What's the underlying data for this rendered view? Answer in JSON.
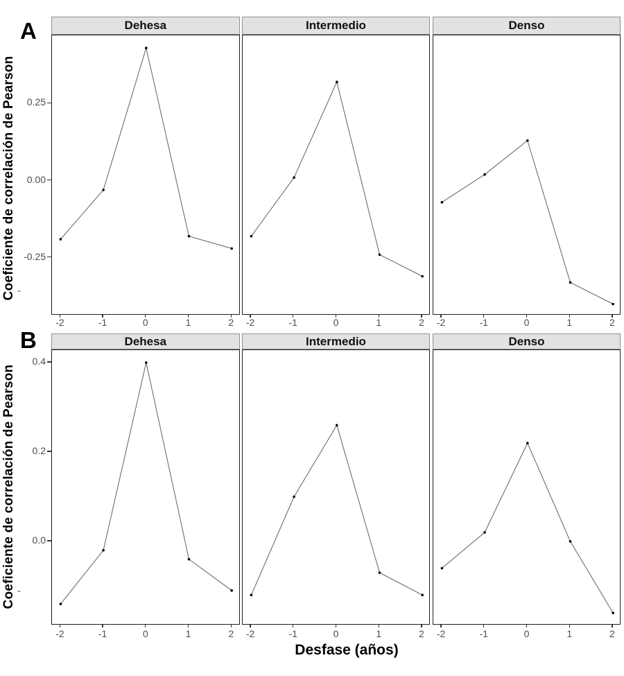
{
  "figure": {
    "row_labels": [
      "A",
      "B"
    ],
    "x_axis_title": "Desfase (años)",
    "y_axis_title": "Coeficiente de correlación de Pearson",
    "facet_titles": [
      "Dehesa",
      "Intermedio",
      "Denso"
    ],
    "stray_marks": [
      "-",
      "-"
    ],
    "colors": {
      "strip_fill": "#e2e2e2",
      "strip_border": "#8f8f8f",
      "panel_border": "#1f1f1f",
      "panel_bg": "#ffffff",
      "line": "#5f5f5f",
      "point": "#000000",
      "tick_label": "#4d4d4d",
      "axis_title": "#000000"
    }
  },
  "chart_data": [
    {
      "type": "line",
      "row_label": "A",
      "x": [
        -2,
        -1,
        0,
        1,
        2
      ],
      "xtick_labels": [
        "-2",
        "-1",
        "0",
        "1",
        "2"
      ],
      "xlabel": "Desfase (años)",
      "ylabel": "Coeficiente de correlación de Pearson",
      "yticks": [
        0.25,
        0,
        -0.25
      ],
      "ytick_labels": [
        "0.25",
        "0.00",
        "-0.25"
      ],
      "ylim": [
        -0.437,
        0.471
      ],
      "grid": false,
      "legend": "none",
      "facets": [
        {
          "name": "Dehesa",
          "values": [
            -0.19,
            -0.03,
            0.43,
            -0.18,
            -0.22
          ]
        },
        {
          "name": "Intermedio",
          "values": [
            -0.18,
            0.01,
            0.32,
            -0.24,
            -0.31
          ]
        },
        {
          "name": "Denso",
          "values": [
            -0.07,
            0.02,
            0.13,
            -0.33,
            -0.4
          ]
        }
      ]
    },
    {
      "type": "line",
      "row_label": "B",
      "x": [
        -2,
        -1,
        0,
        1,
        2
      ],
      "xtick_labels": [
        "-2",
        "-1",
        "0",
        "1",
        "2"
      ],
      "xlabel": "Desfase (años)",
      "ylabel": "Coeficiente de correlación de Pearson",
      "yticks": [
        0.4,
        0.2,
        0
      ],
      "ytick_labels": [
        "0.4",
        "0.2",
        "0.0"
      ],
      "ylim": [
        -0.188,
        0.428
      ],
      "grid": false,
      "legend": "none",
      "facets": [
        {
          "name": "Dehesa",
          "values": [
            -0.14,
            -0.02,
            0.4,
            -0.04,
            -0.11
          ]
        },
        {
          "name": "Intermedio",
          "values": [
            -0.12,
            0.1,
            0.26,
            -0.07,
            -0.12
          ]
        },
        {
          "name": "Denso",
          "values": [
            -0.06,
            0.02,
            0.22,
            0.0,
            -0.16
          ]
        }
      ]
    }
  ]
}
